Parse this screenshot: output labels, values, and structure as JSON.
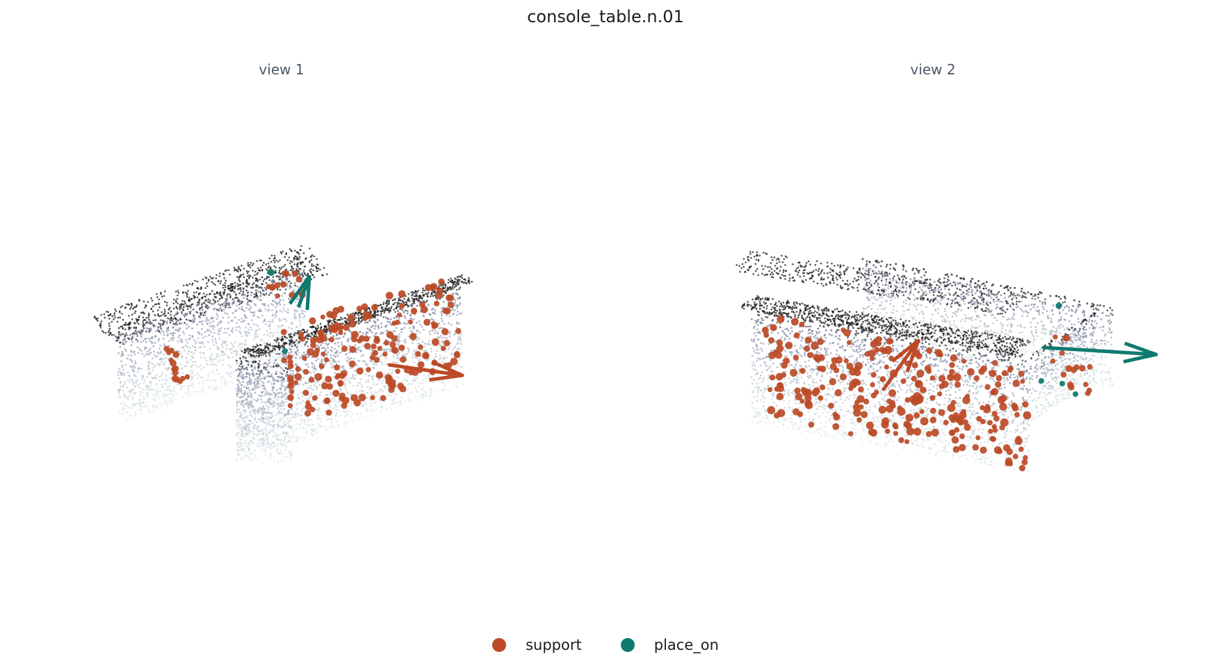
{
  "title": "console_table.n.01",
  "views": [
    {
      "label": "view 1"
    },
    {
      "label": "view 2"
    }
  ],
  "legend": [
    {
      "label": "support",
      "color": "#bc4a26"
    },
    {
      "label": "place_on",
      "color": "#0e7a70"
    }
  ],
  "colors": {
    "support": "#bc4a26",
    "place_on": "#0e7a70",
    "cloud_dark": "#1a1a1a",
    "cloud_mid": "#8a8fa8",
    "cloud_light": "#c8dcdc"
  },
  "icons": {
    "support_marker": "filled-circle",
    "place_on_marker": "filled-circle"
  }
}
